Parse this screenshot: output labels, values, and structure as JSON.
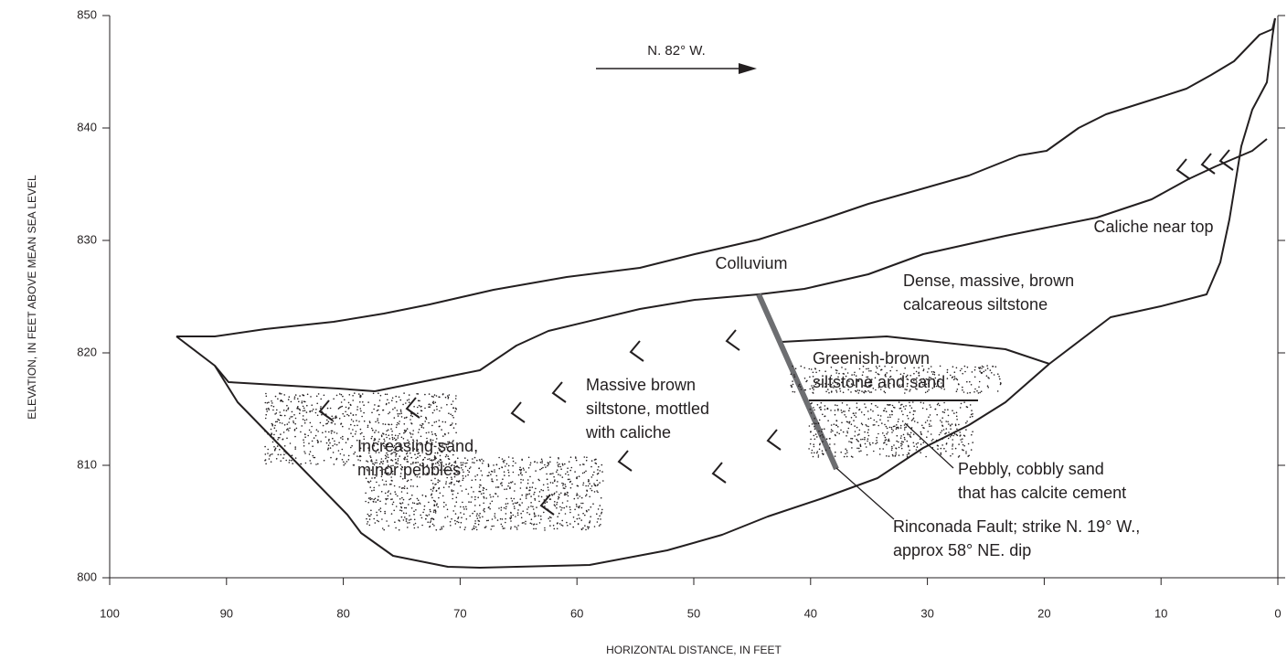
{
  "axes": {
    "x_label": "HORIZONTAL DISTANCE, IN FEET",
    "y_label": "ELEVATION, IN FEET ABOVE MEAN SEA LEVEL",
    "xlim": [
      100,
      0
    ],
    "ylim": [
      800,
      850
    ],
    "xticks": [
      100,
      90,
      80,
      70,
      60,
      50,
      40,
      30,
      20,
      10,
      0
    ],
    "yticks": [
      800,
      810,
      820,
      830,
      840,
      850
    ]
  },
  "direction": "N. 82° W.",
  "labels": [
    {
      "lines": [
        "Colluvium"
      ]
    },
    {
      "lines": [
        "Caliche near top"
      ]
    },
    {
      "lines": [
        "Dense, massive, brown",
        "calcareous siltstone"
      ]
    },
    {
      "lines": [
        "Greenish-brown",
        "siltstone and sand"
      ]
    },
    {
      "lines": [
        "Massive brown",
        "siltstone, mottled",
        "with caliche"
      ]
    },
    {
      "lines": [
        "Increasing sand,",
        "minor pebbles"
      ]
    },
    {
      "lines": [
        "Pebbly, cobbly sand",
        "that has calcite cement"
      ]
    },
    {
      "lines": [
        "Rinconada Fault; strike N. 19° W.,",
        "approx 58° NE. dip"
      ]
    }
  ]
}
